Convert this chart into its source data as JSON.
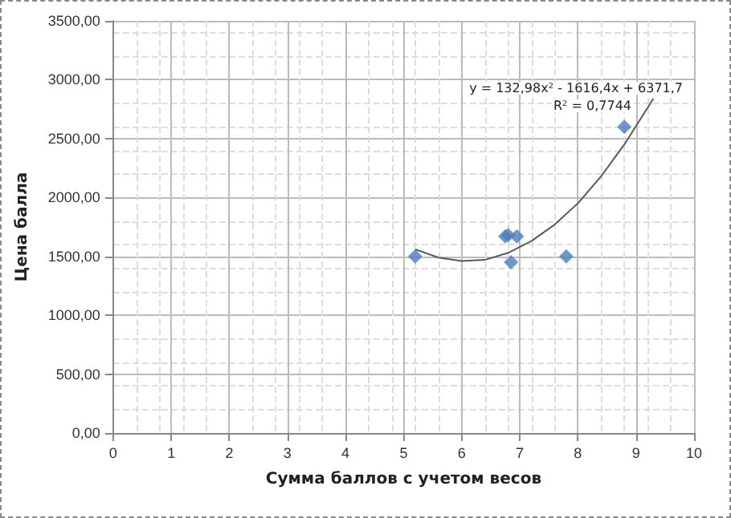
{
  "chart_data": {
    "type": "scatter",
    "xlabel": "Сумма баллов с учетом весов",
    "ylabel": "Цена балла",
    "xlim": [
      0,
      10
    ],
    "xticks": [
      0,
      1,
      2,
      3,
      4,
      5,
      6,
      7,
      8,
      9,
      10
    ],
    "ylim": [
      0,
      3500
    ],
    "yticks": [
      {
        "value": 0,
        "label": "0,00"
      },
      {
        "value": 500,
        "label": "500,00"
      },
      {
        "value": 1000,
        "label": "1000,00"
      },
      {
        "value": 1500,
        "label": "1500,00"
      },
      {
        "value": 2000,
        "label": "2000,00"
      },
      {
        "value": 2500,
        "label": "2500,00"
      },
      {
        "value": 3000,
        "label": "3000,00"
      },
      {
        "value": 3500,
        "label": "3500,00"
      }
    ],
    "grid": true,
    "marker": "diamond",
    "series": [
      {
        "color": "#4a7ebb",
        "x": [
          5.2,
          6.75,
          6.8,
          6.95,
          6.85,
          7.8,
          8.8
        ],
        "values": [
          1500,
          1670,
          1680,
          1670,
          1450,
          1500,
          2600
        ]
      },
      {
        "type": "line",
        "color": "#595959",
        "marker": "none",
        "x": [
          5.2,
          5.6,
          6.0,
          6.4,
          6.8,
          7.2,
          7.6,
          8.0,
          8.4,
          8.8,
          9.3
        ],
        "values": [
          1560,
          1490,
          1460,
          1470,
          1530,
          1630,
          1770,
          1950,
          2180,
          2450,
          2840
        ]
      }
    ],
    "annotations": [
      "y = 132,98x² - 1616,4x + 6371,7",
      "R² = 0,7744"
    ]
  }
}
